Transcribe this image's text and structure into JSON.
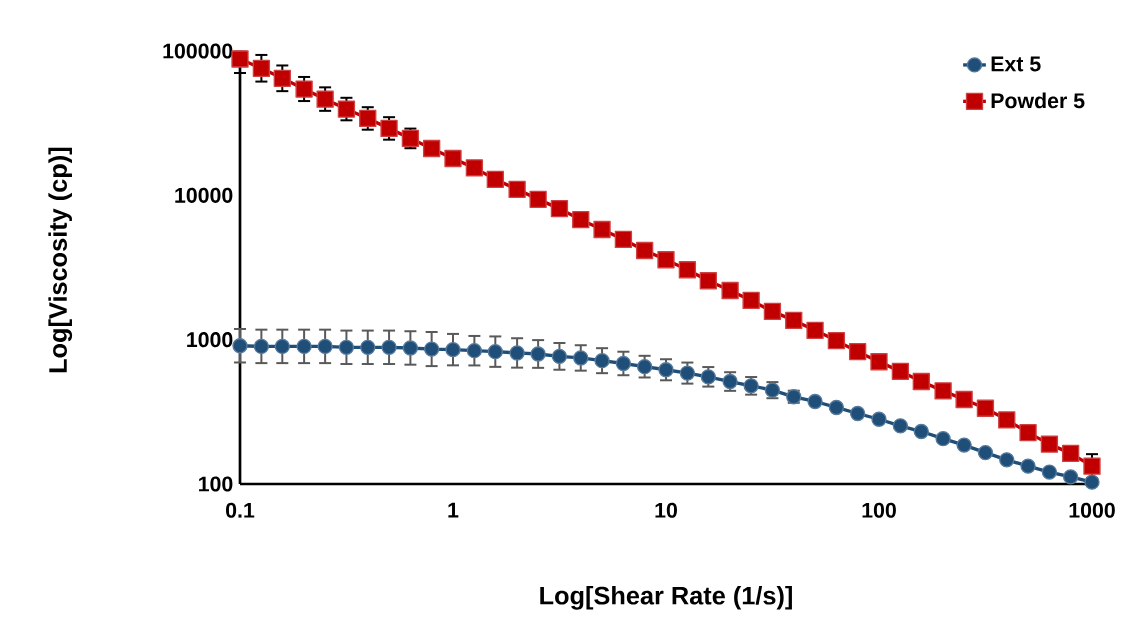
{
  "chart_data": {
    "type": "line",
    "xlabel": "Log[Shear Rate (1/s)]",
    "ylabel": "Log[Viscosity (cp)]",
    "log": "xy",
    "grid": false,
    "legend": "top right",
    "x": [
      0.1,
      0.126,
      0.158,
      0.2,
      0.251,
      0.316,
      0.398,
      0.501,
      0.631,
      0.794,
      1,
      1.26,
      1.58,
      2,
      2.51,
      3.16,
      3.98,
      5.01,
      6.31,
      7.94,
      10,
      12.6,
      15.8,
      20,
      25.1,
      31.6,
      39.8,
      50.1,
      63.1,
      79.4,
      100,
      126,
      158,
      200,
      251,
      316,
      398,
      501,
      631,
      794,
      1000
    ],
    "xlim": [
      0.1,
      1000
    ],
    "xticks": [
      0.1,
      1,
      10,
      100,
      1000
    ],
    "ylim": [
      100,
      100000
    ],
    "yticks": [
      100,
      1000,
      10000,
      100000
    ],
    "series": [
      {
        "name": "Ext 5",
        "color": "#1f4e79",
        "marker": "circle",
        "values": [
          908,
          898,
          898,
          898,
          898,
          885,
          885,
          885,
          876,
          861,
          853,
          839,
          826,
          809,
          796,
          766,
          747,
          715,
          684,
          650,
          619,
          587,
          553,
          513,
          479,
          447,
          402,
          373,
          339,
          308,
          281,
          253,
          231,
          206,
          186,
          165,
          147,
          133,
          121,
          112,
          103
        ],
        "errors": [
          [
            695,
            1186
          ],
          [
            688,
            1173
          ],
          [
            688,
            1173
          ],
          [
            688,
            1173
          ],
          [
            688,
            1173
          ],
          [
            678,
            1156
          ],
          [
            678,
            1156
          ],
          [
            678,
            1156
          ],
          [
            671,
            1144
          ],
          [
            656,
            1130
          ],
          [
            664,
            1096
          ],
          [
            663,
            1061
          ],
          [
            648,
            1053
          ],
          [
            640,
            1023
          ],
          [
            638,
            993
          ],
          [
            619,
            948
          ],
          [
            610,
            915
          ],
          [
            586,
            873
          ],
          [
            567,
            825
          ],
          [
            547,
            773
          ],
          [
            523,
            732
          ],
          [
            496,
            694
          ],
          [
            473,
            646
          ],
          [
            442,
            595
          ],
          [
            416,
            551
          ],
          [
            393,
            508
          ],
          [
            365,
            443
          ],
          null,
          null,
          null,
          null,
          null,
          null,
          null,
          null,
          null,
          null,
          null,
          null,
          null,
          null
        ]
      },
      {
        "name": "Powder 5",
        "color": "#c00000",
        "marker": "square",
        "values": [
          88000,
          75900,
          64700,
          54500,
          46400,
          39600,
          34100,
          29100,
          24800,
          21100,
          18000,
          15500,
          12900,
          11000,
          9380,
          8090,
          6780,
          5800,
          4950,
          4150,
          3580,
          3050,
          2560,
          2190,
          1870,
          1570,
          1360,
          1160,
          985,
          826,
          703,
          603,
          513,
          442,
          385,
          335,
          278,
          227,
          189,
          163,
          133
        ],
        "errors": [
          [
            70400,
            99000
          ],
          [
            61400,
            93900
          ],
          [
            52700,
            79400
          ],
          [
            45000,
            66100
          ],
          [
            38500,
            56000
          ],
          [
            33100,
            47400
          ],
          [
            28500,
            40800
          ],
          [
            24300,
            34800
          ],
          [
            21200,
            29000
          ],
          null,
          null,
          null,
          null,
          null,
          null,
          null,
          null,
          null,
          null,
          null,
          null,
          null,
          null,
          null,
          null,
          null,
          null,
          null,
          null,
          null,
          null,
          null,
          null,
          null,
          null,
          null,
          null,
          null,
          null,
          null,
          [
            110,
            161
          ]
        ]
      }
    ]
  }
}
